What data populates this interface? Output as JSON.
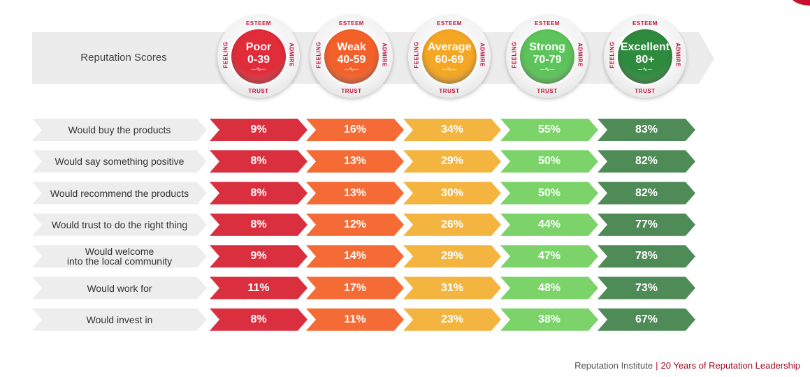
{
  "chart_data": {
    "type": "table",
    "title": "Reputation Scores",
    "categories": [
      {
        "name": "Poor",
        "range": "0-39",
        "color": "#e12c3a"
      },
      {
        "name": "Weak",
        "range": "40-59",
        "color": "#f4602a"
      },
      {
        "name": "Average",
        "range": "60-69",
        "color": "#f5a623"
      },
      {
        "name": "Strong",
        "range": "70-79",
        "color": "#5cc45a"
      },
      {
        "name": "Excellent",
        "range": "80+",
        "color": "#2e8a3d"
      }
    ],
    "ring_labels": {
      "top": "ESTEEM",
      "bottom": "TRUST",
      "left": "FEELING",
      "right": "ADMIRE"
    },
    "rows": [
      {
        "label": [
          "Would buy the products"
        ],
        "values": [
          "9%",
          "16%",
          "34%",
          "55%",
          "83%"
        ]
      },
      {
        "label": [
          "Would say something positive"
        ],
        "values": [
          "8%",
          "13%",
          "29%",
          "50%",
          "82%"
        ]
      },
      {
        "label": [
          "Would recommend the products"
        ],
        "values": [
          "8%",
          "13%",
          "30%",
          "50%",
          "82%"
        ]
      },
      {
        "label": [
          "Would trust to do the right thing"
        ],
        "values": [
          "8%",
          "12%",
          "26%",
          "44%",
          "77%"
        ]
      },
      {
        "label": [
          "Would welcome",
          "into the local community"
        ],
        "values": [
          "9%",
          "14%",
          "29%",
          "47%",
          "78%"
        ]
      },
      {
        "label": [
          "Would work for"
        ],
        "values": [
          "11%",
          "17%",
          "31%",
          "48%",
          "73%"
        ]
      },
      {
        "label": [
          "Would invest in"
        ],
        "values": [
          "8%",
          "11%",
          "23%",
          "38%",
          "67%"
        ]
      }
    ],
    "cell_colors": [
      "#d92f3f",
      "#f46b35",
      "#f4b440",
      "#7bd36a",
      "#4e8b57"
    ],
    "label_color": "#ededed",
    "header_band_color": "#ececec"
  },
  "footer": {
    "brand": "Reputation Institute",
    "separator": "|",
    "tagline": "20 Years of Reputation Leadership"
  }
}
